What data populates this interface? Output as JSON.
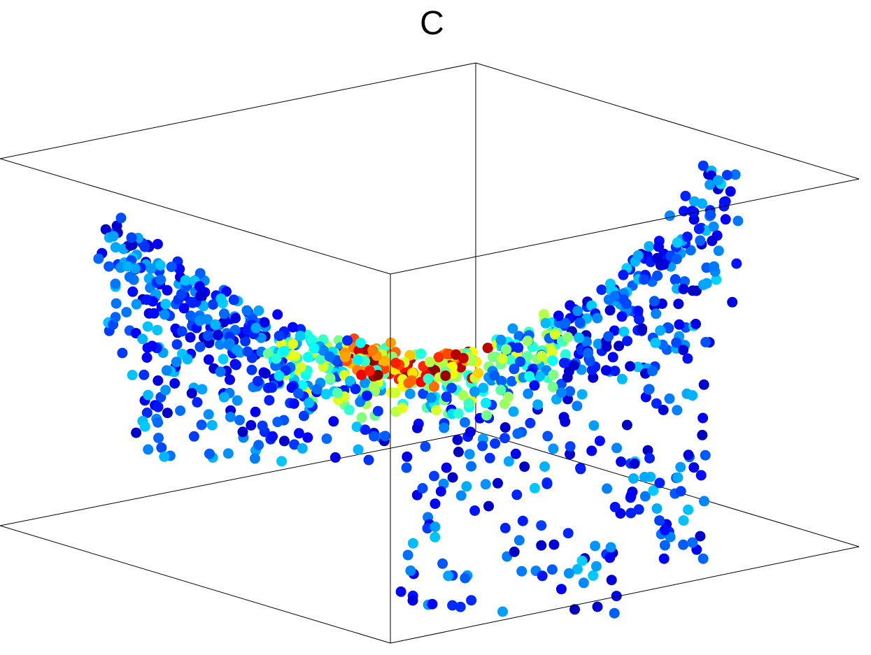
{
  "chart_data": {
    "type": "scatter",
    "projection": "3d",
    "title": "C",
    "xlabel": "",
    "ylabel": "",
    "zlabel": "",
    "xlim": [
      -1,
      1
    ],
    "ylim": [
      -1,
      1
    ],
    "zlim": [
      0,
      1
    ],
    "grid": false,
    "tick_labels": false,
    "legend": "none",
    "box_color": "#000000",
    "colormap": "jet",
    "colormap_stops": [
      "#00008f",
      "#0000ff",
      "#0080ff",
      "#00ffff",
      "#80ff80",
      "#ffff00",
      "#ff8000",
      "#ff0000",
      "#800000"
    ],
    "color_range": [
      0,
      1
    ],
    "marker": "filled-circle",
    "n_points": 1100,
    "sample_points": [
      {
        "x": -0.95,
        "y": 0.9,
        "z": 0.9,
        "c": 0.35
      },
      {
        "x": -0.8,
        "y": 0.6,
        "z": 0.78,
        "c": 0.15
      },
      {
        "x": -0.6,
        "y": 0.3,
        "z": 0.62,
        "c": 0.1
      },
      {
        "x": -0.3,
        "y": 0.0,
        "z": 0.45,
        "c": 0.2
      },
      {
        "x": 0.0,
        "y": 0.0,
        "z": 0.35,
        "c": 0.9
      },
      {
        "x": 0.05,
        "y": -0.1,
        "z": 0.36,
        "c": 0.7
      },
      {
        "x": 0.3,
        "y": 0.0,
        "z": 0.46,
        "c": 0.25
      },
      {
        "x": 0.6,
        "y": -0.3,
        "z": 0.64,
        "c": 0.1
      },
      {
        "x": 0.8,
        "y": -0.6,
        "z": 0.8,
        "c": 0.12
      },
      {
        "x": 0.95,
        "y": -0.9,
        "z": 0.92,
        "c": 0.3
      },
      {
        "x": 0.4,
        "y": 0.8,
        "z": 0.05,
        "c": 0.18
      },
      {
        "x": 0.7,
        "y": 0.5,
        "z": 0.15,
        "c": 0.2
      }
    ]
  }
}
